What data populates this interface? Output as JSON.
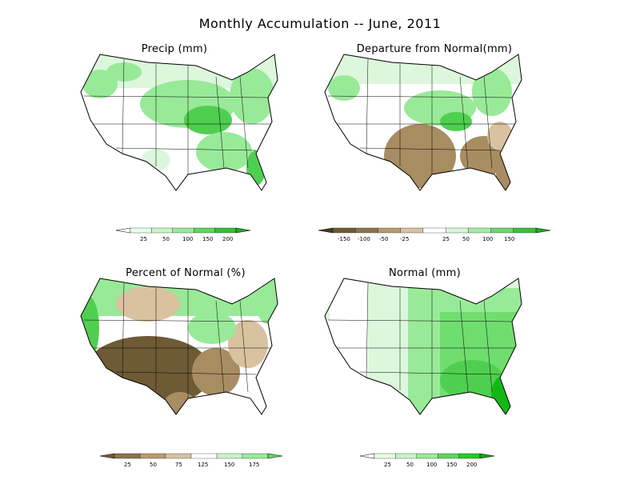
{
  "title": "Monthly Accumulation -- June, 2011",
  "panels": [
    {
      "id": "precip",
      "title": "Precip (mm)",
      "legend": {
        "ticks": [
          "25",
          "50",
          "100",
          "150",
          "200"
        ],
        "colors": [
          "#ffffff",
          "#e6ffe6",
          "#c8f5c8",
          "#98ea98",
          "#5fd65f",
          "#33c033",
          "#20aa20"
        ]
      }
    },
    {
      "id": "departure",
      "title": "Departure from Normal(mm)",
      "legend": {
        "ticks": [
          "-150",
          "-100",
          "-50",
          "-25",
          "25",
          "50",
          "100",
          "150"
        ],
        "colors": [
          "#4a3b1c",
          "#6e5a35",
          "#8c7450",
          "#b89a72",
          "#d9c2a0",
          "#ffffff",
          "#d9f5d9",
          "#a8eaa8",
          "#6fd66f",
          "#3cc03c",
          "#1faa1f"
        ]
      }
    },
    {
      "id": "percent",
      "title": "Percent of Normal (%)",
      "legend": {
        "ticks": [
          "25",
          "50",
          "75",
          "125",
          "150",
          "175"
        ],
        "colors": [
          "#6e5a35",
          "#8c7450",
          "#b89a72",
          "#d9c2a0",
          "#ffffff",
          "#c8f5c8",
          "#98ea98",
          "#5fd65f"
        ]
      }
    },
    {
      "id": "normal",
      "title": "Normal (mm)",
      "legend": {
        "ticks": [
          "25",
          "50",
          "100",
          "150",
          "200"
        ],
        "colors": [
          "#ffffff",
          "#e6ffe6",
          "#c8f5c8",
          "#98ea98",
          "#5fd65f",
          "#22cc22",
          "#10a510"
        ]
      }
    }
  ],
  "colors": {
    "green_light": "#dcf7dc",
    "green_mid": "#98ea98",
    "green_dark": "#4fcf4f",
    "green_deep": "#14b814",
    "brown_light": "#d9c2a0",
    "brown_mid": "#a88c62",
    "brown_dark": "#6e5a35"
  }
}
